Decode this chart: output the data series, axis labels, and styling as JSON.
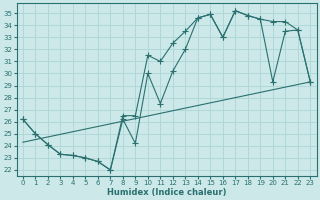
{
  "xlabel": "Humidex (Indice chaleur)",
  "bg_color": "#cce8e8",
  "grid_color": "#b0d8d8",
  "line_color": "#2a7070",
  "xlim": [
    -0.5,
    23.5
  ],
  "ylim": [
    21.5,
    35.8
  ],
  "xticks": [
    0,
    1,
    2,
    3,
    4,
    5,
    6,
    7,
    8,
    9,
    10,
    11,
    12,
    13,
    14,
    15,
    16,
    17,
    18,
    19,
    20,
    21,
    22,
    23
  ],
  "yticks": [
    22,
    23,
    24,
    25,
    26,
    27,
    28,
    29,
    30,
    31,
    32,
    33,
    34,
    35
  ],
  "line1_x": [
    0,
    1,
    2,
    3,
    4,
    5,
    6,
    7,
    8,
    9,
    10,
    11,
    12,
    13,
    14,
    15,
    16,
    17,
    18,
    19,
    20,
    21,
    22,
    23
  ],
  "line1_y": [
    26.2,
    25.0,
    24.1,
    23.3,
    23.2,
    23.0,
    22.7,
    22.0,
    26.2,
    24.2,
    30.0,
    27.5,
    30.2,
    32.0,
    34.6,
    34.9,
    33.0,
    35.2,
    34.8,
    34.5,
    29.3,
    33.5,
    33.6,
    29.3
  ],
  "line2_x": [
    0,
    1,
    2,
    3,
    4,
    5,
    6,
    7,
    8,
    9,
    10,
    11,
    12,
    13,
    14,
    15,
    16,
    17,
    18,
    19,
    20,
    21,
    22,
    23
  ],
  "line2_y": [
    26.2,
    25.0,
    24.1,
    23.3,
    23.2,
    23.0,
    22.7,
    22.0,
    26.5,
    26.5,
    31.5,
    31.0,
    32.5,
    33.5,
    34.6,
    34.9,
    33.0,
    35.2,
    34.8,
    34.5,
    34.3,
    34.3,
    33.6,
    29.3
  ],
  "line3_x": [
    0,
    23
  ],
  "line3_y": [
    24.3,
    29.3
  ],
  "marker_style": "+",
  "marker_size": 4.0,
  "linewidth": 0.8
}
